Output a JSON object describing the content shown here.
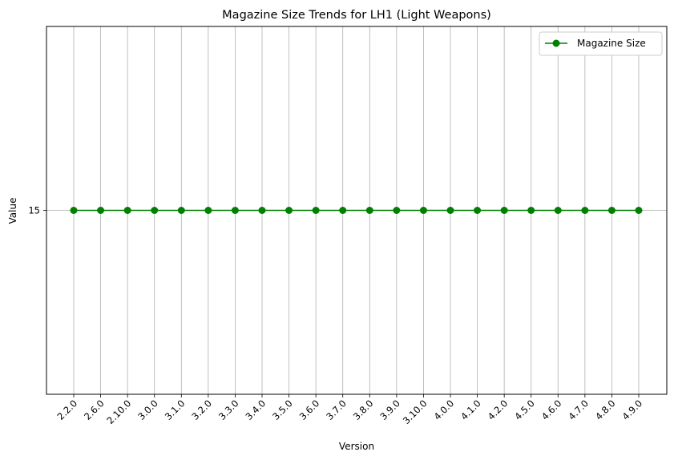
{
  "chart_data": {
    "type": "line",
    "title": "Magazine Size Trends for LH1 (Light Weapons)",
    "xlabel": "Version",
    "ylabel": "Value",
    "categories": [
      "2.2.0",
      "2.6.0",
      "2.10.0",
      "3.0.0",
      "3.1.0",
      "3.2.0",
      "3.3.0",
      "3.4.0",
      "3.5.0",
      "3.6.0",
      "3.7.0",
      "3.8.0",
      "3.9.0",
      "3.10.0",
      "4.0.0",
      "4.1.0",
      "4.2.0",
      "4.5.0",
      "4.6.0",
      "4.7.0",
      "4.8.0",
      "4.9.0"
    ],
    "yticks": [
      15
    ],
    "ylim": [
      10,
      20
    ],
    "grid": true,
    "legend_position": "top-right",
    "series": [
      {
        "name": "Magazine Size",
        "color": "#008000",
        "marker": "circle",
        "values": [
          15,
          15,
          15,
          15,
          15,
          15,
          15,
          15,
          15,
          15,
          15,
          15,
          15,
          15,
          15,
          15,
          15,
          15,
          15,
          15,
          15,
          15
        ]
      }
    ]
  }
}
